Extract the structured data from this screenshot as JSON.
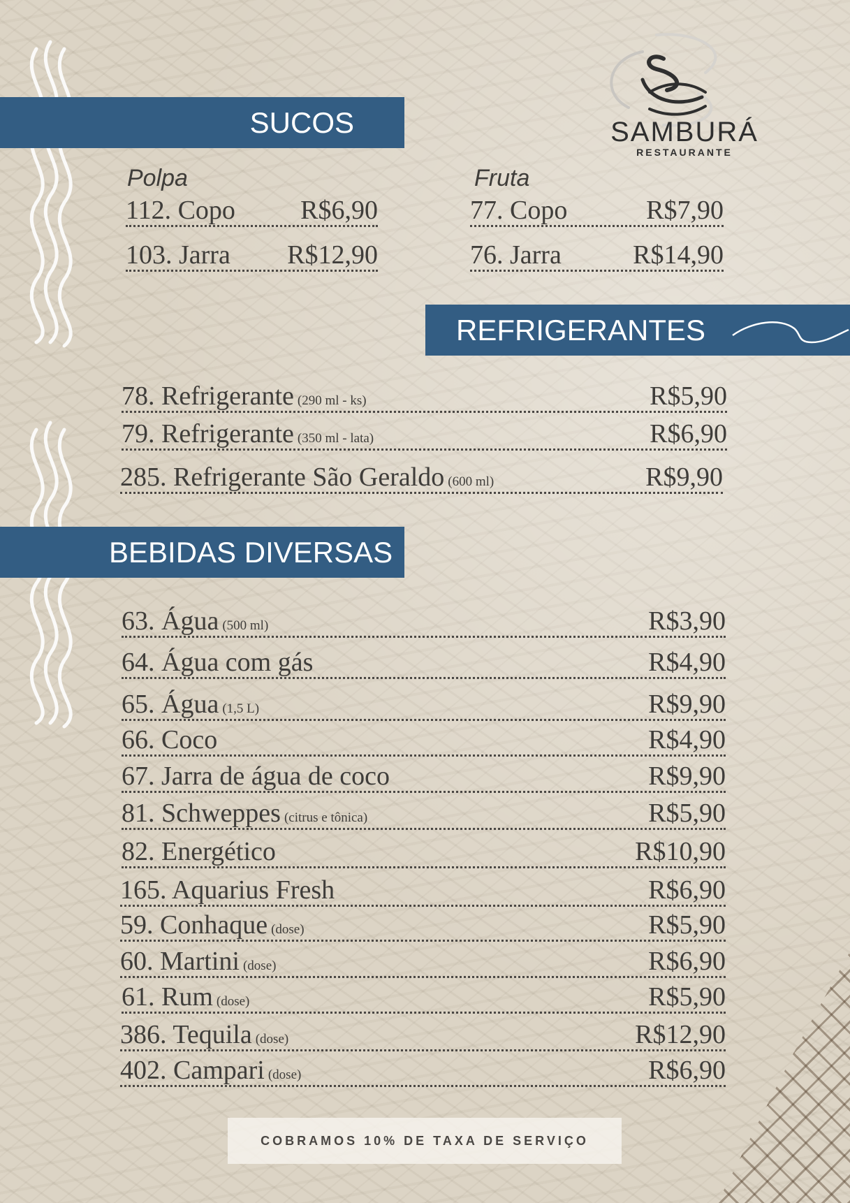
{
  "logo": {
    "name": "SAMBURÁ",
    "subtitle": "RESTAURANTE"
  },
  "sucos": {
    "title": "SUCOS",
    "polpa": {
      "label": "Polpa",
      "items": [
        {
          "name": "112. Copo",
          "price": "R$6,90"
        },
        {
          "name": "103. Jarra",
          "price": "R$12,90"
        }
      ]
    },
    "fruta": {
      "label": "Fruta",
      "items": [
        {
          "name": "77. Copo",
          "price": "R$7,90"
        },
        {
          "name": "76. Jarra",
          "price": "R$14,90"
        }
      ]
    }
  },
  "refrigerantes": {
    "title": "REFRIGERANTES",
    "items": [
      {
        "name": "78. Refrigerante",
        "note": "(290 ml - ks)",
        "price": "R$5,90"
      },
      {
        "name": "79. Refrigerante",
        "note": "(350 ml - lata)",
        "price": "R$6,90"
      },
      {
        "name": "285. Refrigerante São Geraldo",
        "note": "(600 ml)",
        "price": "R$9,90"
      }
    ]
  },
  "bebidas": {
    "title": "BEBIDAS DIVERSAS",
    "items": [
      {
        "name": "63. Água",
        "note": "(500 ml)",
        "price": "R$3,90"
      },
      {
        "name": "64. Água com gás",
        "note": "",
        "price": "R$4,90"
      },
      {
        "name": "65. Água",
        "note": "(1,5 L)",
        "price": "R$9,90"
      },
      {
        "name": "66. Coco",
        "note": "",
        "price": "R$4,90"
      },
      {
        "name": "67. Jarra de água de coco",
        "note": "",
        "price": "R$9,90"
      },
      {
        "name": "81. Schweppes",
        "note": "(citrus e tônica)",
        "price": "R$5,90"
      },
      {
        "name": "82. Energético",
        "note": "",
        "price": "R$10,90"
      },
      {
        "name": "165. Aquarius Fresh",
        "note": "",
        "price": "R$6,90"
      },
      {
        "name": "59. Conhaque",
        "note": "(dose)",
        "price": "R$5,90"
      },
      {
        "name": "60. Martini",
        "note": "(dose)",
        "price": "R$6,90"
      },
      {
        "name": "61. Rum",
        "note": "(dose)",
        "price": "R$5,90"
      },
      {
        "name": "386. Tequila",
        "note": "(dose)",
        "price": "R$12,90"
      },
      {
        "name": "402. Campari",
        "note": "(dose)",
        "price": "R$6,90"
      }
    ]
  },
  "footer": {
    "text": "COBRAMOS 10% DE TAXA DE SERVIÇO"
  }
}
